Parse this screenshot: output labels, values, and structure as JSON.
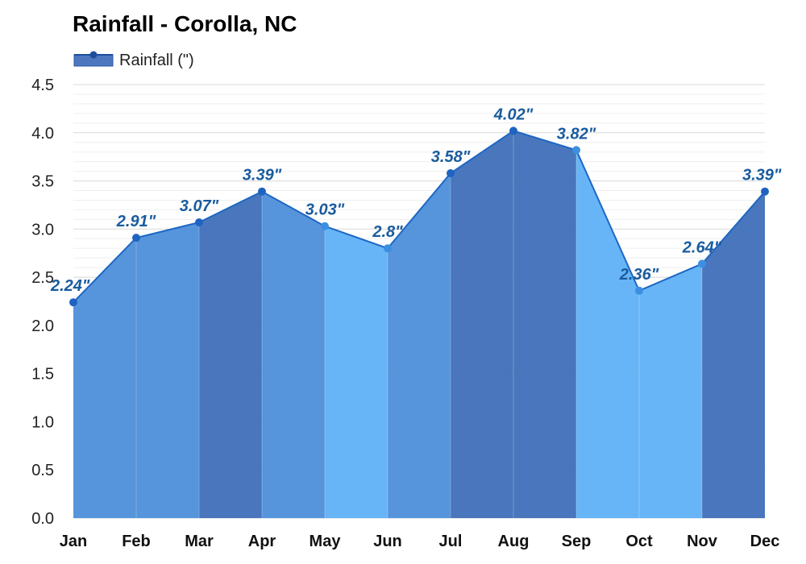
{
  "colors": {
    "band_dark": "#3f6fb8",
    "band_mid": "#4d8fd9",
    "band_light": "#5fb1f5",
    "line": "#1d67c4",
    "point": "#1e63c0",
    "label": "#1a5c9e",
    "grid": "#e6e6e6"
  },
  "chart_data": {
    "type": "area",
    "title": "Rainfall - Corolla, NC",
    "xlabel": "",
    "ylabel": "",
    "categories": [
      "Jan",
      "Feb",
      "Mar",
      "Apr",
      "May",
      "Jun",
      "Jul",
      "Aug",
      "Sep",
      "Oct",
      "Nov",
      "Dec"
    ],
    "series": [
      {
        "name": "Rainfall (\")",
        "values": [
          2.24,
          2.91,
          3.07,
          3.39,
          3.03,
          2.8,
          3.58,
          4.02,
          3.82,
          2.36,
          2.64,
          3.39
        ],
        "value_labels": [
          "2.24\"",
          "2.91\"",
          "3.07\"",
          "3.39\"",
          "3.03\"",
          "2.8\"",
          "3.58\"",
          "4.02\"",
          "3.82\"",
          "2.36\"",
          "2.64\"",
          "3.39\""
        ]
      }
    ],
    "ylim": [
      0,
      4.5
    ],
    "yticks": [
      "0.0",
      "0.5",
      "1.0",
      "1.5",
      "2.0",
      "2.5",
      "3.0",
      "3.5",
      "4.0",
      "4.5"
    ],
    "grid": true,
    "legend": "top-left"
  }
}
